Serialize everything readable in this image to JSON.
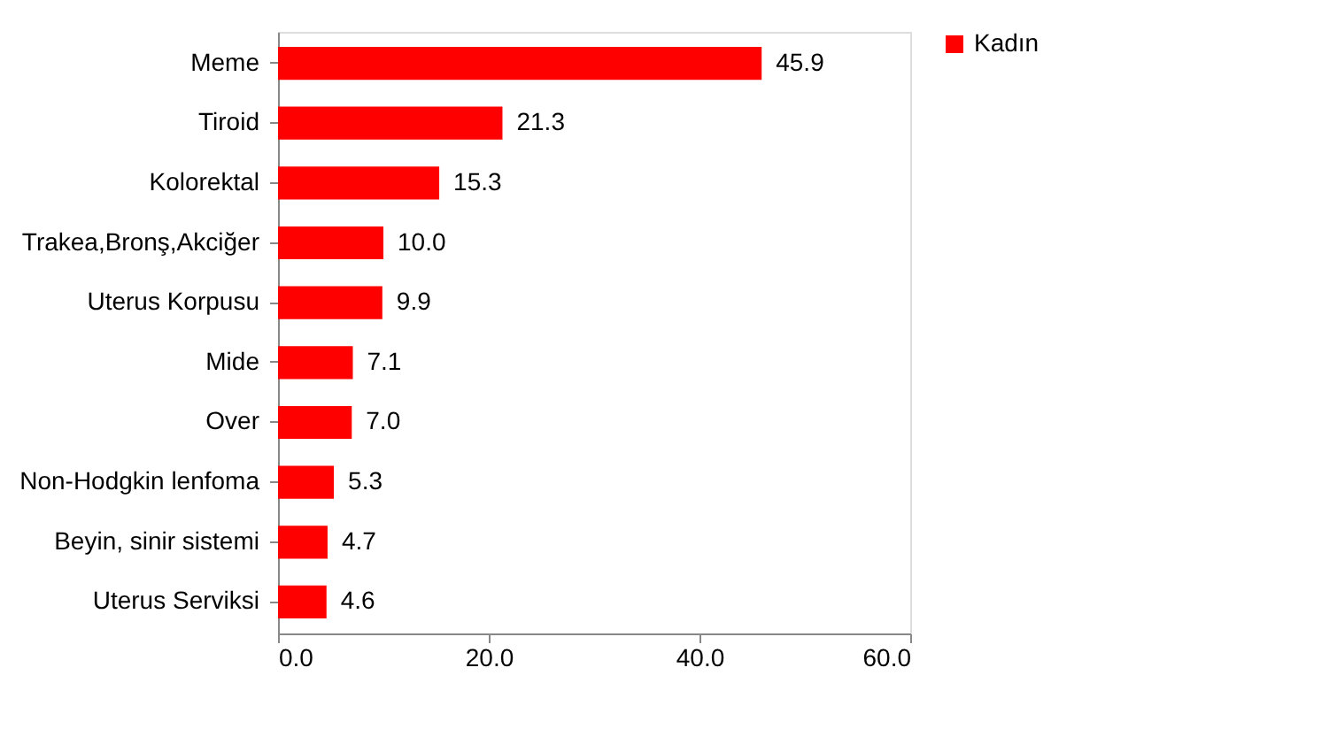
{
  "chart_data": {
    "type": "bar",
    "orientation": "horizontal",
    "categories": [
      "Meme",
      "Tiroid",
      "Kolorektal",
      "Trakea,Bronş,Akciğer",
      "Uterus Korpusu",
      "Mide",
      "Over",
      "Non-Hodgkin lenfoma",
      "Beyin, sinir sistemi",
      "Uterus Serviksi"
    ],
    "series": [
      {
        "name": "Kadın",
        "color": "#ff0000",
        "values": [
          45.9,
          21.3,
          15.3,
          10.0,
          9.9,
          7.1,
          7.0,
          5.3,
          4.7,
          4.6
        ],
        "value_labels": [
          "45.9",
          "21.3",
          "15.3",
          "10.0",
          "9.9",
          "7.1",
          "7.0",
          "5.3",
          "4.7",
          "4.6"
        ]
      }
    ],
    "xlim": [
      0,
      60
    ],
    "xticks": [
      {
        "value": 0,
        "label": "0.0"
      },
      {
        "value": 20,
        "label": "20.0"
      },
      {
        "value": 40,
        "label": "40.0"
      },
      {
        "value": 60,
        "label": "60.0"
      }
    ],
    "grid": false,
    "legend": "right"
  }
}
